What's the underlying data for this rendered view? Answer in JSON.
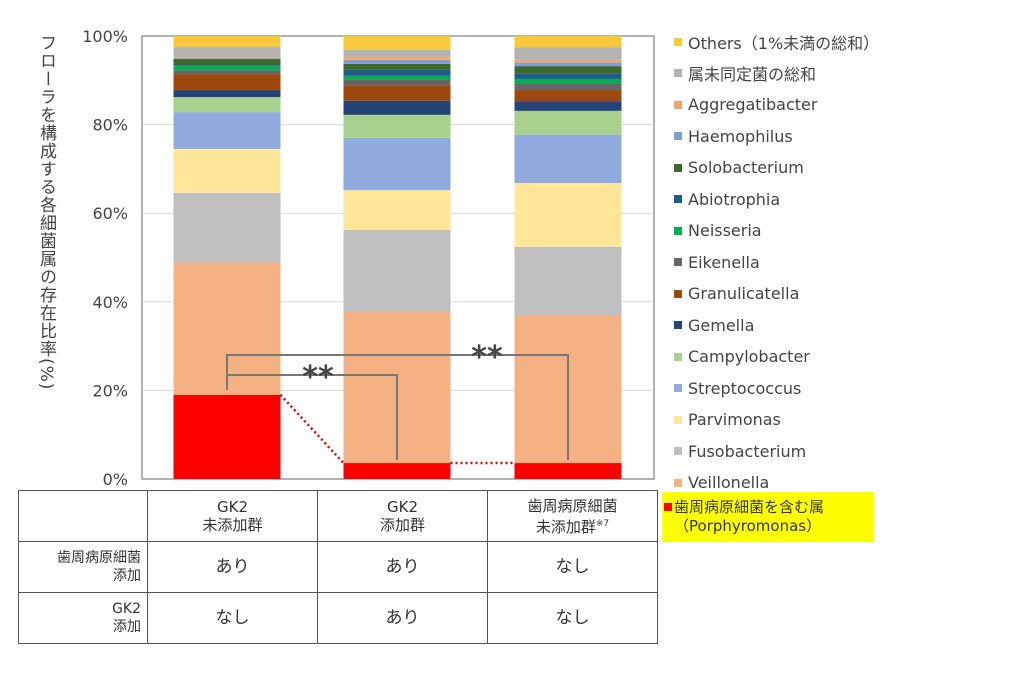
{
  "chart_data": {
    "type": "bar",
    "stacked": true,
    "percent": true,
    "ylabel": "フローラを構成する各細菌属の存在比率(%)",
    "ylim": [
      0,
      100
    ],
    "yticks": [
      "0%",
      "20%",
      "40%",
      "60%",
      "80%",
      "100%"
    ],
    "grid": true,
    "legend_position": "right",
    "categories": [
      "GK2 未添加群",
      "GK2 添加群",
      "歯周病原細菌 未添加群※7"
    ],
    "series": [
      {
        "name": "歯周病原細菌を含む属（Porphyromonas）",
        "color": "#FF0000",
        "values": [
          19.0,
          3.6,
          3.6
        ]
      },
      {
        "name": "Veillonella",
        "color": "#F4B183",
        "values": [
          29.8,
          34.1,
          33.4
        ]
      },
      {
        "name": "Fusobacterium",
        "color": "#BFBFBF",
        "values": [
          15.8,
          18.5,
          15.4
        ]
      },
      {
        "name": "Parvimonas",
        "color": "#FFE699",
        "values": [
          9.9,
          9.0,
          14.4
        ]
      },
      {
        "name": "Streptococcus",
        "color": "#8FAADC",
        "values": [
          8.3,
          11.8,
          10.9
        ]
      },
      {
        "name": "Campylobacter",
        "color": "#A9D18E",
        "values": [
          3.4,
          5.2,
          5.4
        ]
      },
      {
        "name": "Gemella",
        "color": "#264478",
        "values": [
          1.6,
          3.2,
          2.2
        ]
      },
      {
        "name": "Granulicatella",
        "color": "#9E480E",
        "values": [
          3.6,
          3.5,
          2.5
        ]
      },
      {
        "name": "Eikenella",
        "color": "#666666",
        "values": [
          0.9,
          1.3,
          1.5
        ]
      },
      {
        "name": "Neisseria",
        "color": "#00B050",
        "values": [
          0.9,
          0.8,
          1.0
        ]
      },
      {
        "name": "Abiotrophia",
        "color": "#1F5E8C",
        "values": [
          0.2,
          1.4,
          1.2
        ]
      },
      {
        "name": "Solobacterium",
        "color": "#3C6A2C",
        "values": [
          1.4,
          1.3,
          1.7
        ]
      },
      {
        "name": "Haemophilus",
        "color": "#7E9ED6",
        "values": [
          0.2,
          0.9,
          0.8
        ]
      },
      {
        "name": "Aggregatibacter",
        "color": "#F4A66A",
        "values": [
          0.2,
          0.7,
          0.6
        ]
      },
      {
        "name": "属未同定菌の総和",
        "color": "#B3B3B3",
        "values": [
          2.3,
          1.6,
          2.8
        ]
      },
      {
        "name": "Others（1%未満の総和）",
        "color": "#F8C93A",
        "values": [
          2.5,
          3.1,
          2.6
        ]
      }
    ],
    "annotations": [
      {
        "label": "**",
        "between": [
          0,
          1
        ]
      },
      {
        "label": "**",
        "between": [
          0,
          2
        ]
      }
    ]
  },
  "legend_highlight": {
    "line1": "歯周病原細菌を含む属",
    "line2": "（Porphyromonas）"
  },
  "table": {
    "headers": [
      {
        "l1": "GK2",
        "l2": "未添加群",
        "sup": ""
      },
      {
        "l1": "GK2",
        "l2": "添加群",
        "sup": ""
      },
      {
        "l1": "歯周病原細菌",
        "l2": "未添加群",
        "sup": "※7"
      }
    ],
    "rows": [
      {
        "l1": "歯周病原細菌",
        "l2": "添加",
        "cells": [
          "あり",
          "あり",
          "なし"
        ]
      },
      {
        "l1": "GK2",
        "l2": "添加",
        "cells": [
          "なし",
          "あり",
          "なし"
        ]
      }
    ]
  }
}
